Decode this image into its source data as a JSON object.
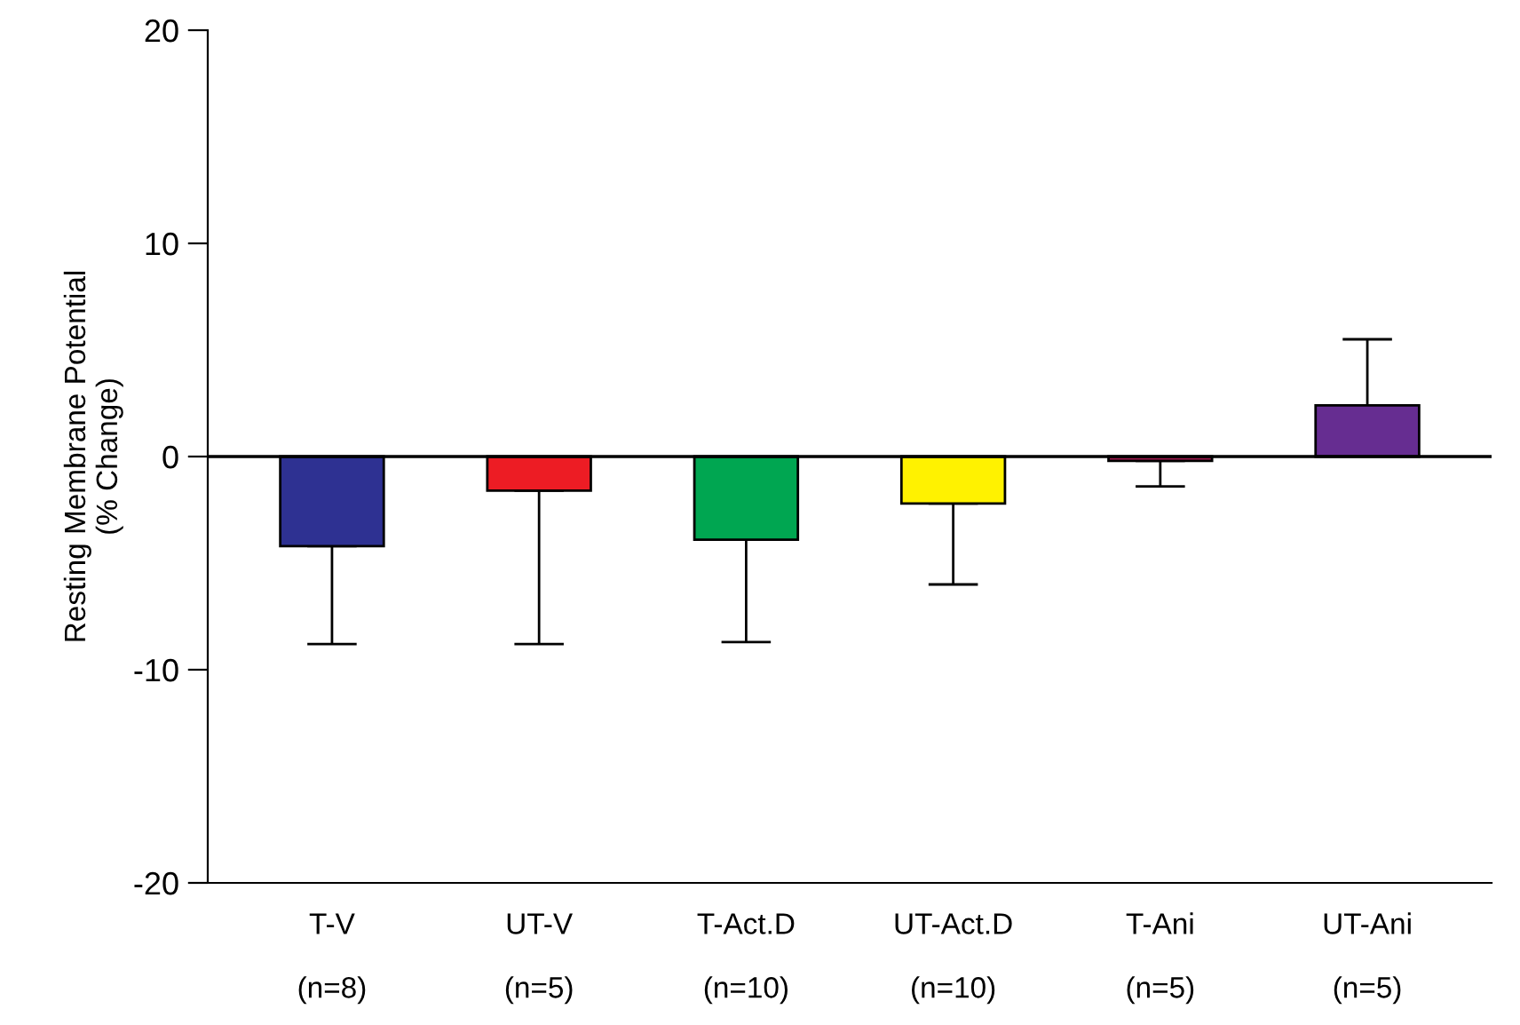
{
  "chart_data": {
    "type": "bar",
    "ylabel": "Resting Membrane Potential\n(% Change)",
    "categories": [
      "T-V\n\n(n=8)",
      "UT-V\n\n(n=5)",
      "T-Act.D\n\n(n=10)",
      "UT-Act.D\n\n(n=10)",
      "T-Ani\n\n(n=5)",
      "UT-Ani\n\n(n=5)"
    ],
    "values": [
      -4.2,
      -1.6,
      -3.9,
      -2.2,
      -0.2,
      2.4
    ],
    "colors": [
      "#2e3192",
      "#ed1c24",
      "#00a651",
      "#fff200",
      "#a0184e",
      "#662d91"
    ],
    "errors": [
      [
        -8.8,
        -4.2
      ],
      [
        -8.8,
        -1.6
      ],
      [
        -8.7,
        -3.9
      ],
      [
        -6.0,
        -2.2
      ],
      [
        -1.4,
        -0.2
      ],
      [
        2.4,
        5.5
      ]
    ],
    "ylim": [
      -20,
      20
    ],
    "yticks": [
      -20,
      -10,
      0,
      10,
      20
    ],
    "ref_lines": [
      {
        "axis": "y",
        "value": 0,
        "color": "#000000"
      }
    ],
    "grid": false
  }
}
